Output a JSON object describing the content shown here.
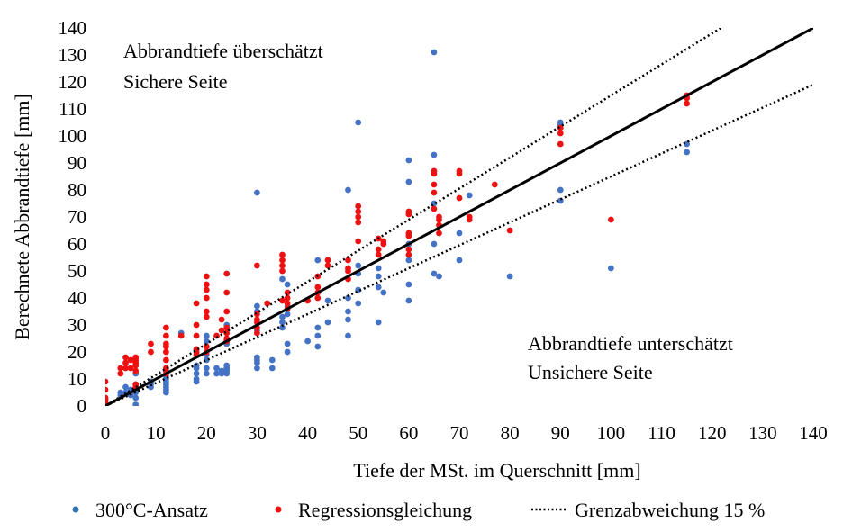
{
  "chart_data": {
    "type": "scatter",
    "xlabel": "Tiefe der MSt. im Querschnitt [mm]",
    "ylabel": "Berechnete Abbrandtiefe [mm]",
    "xlim": [
      0,
      140
    ],
    "ylim": [
      0,
      140
    ],
    "xticks": [
      "0",
      "10",
      "20",
      "30",
      "40",
      "50",
      "60",
      "70",
      "80",
      "90",
      "100",
      "110",
      "120",
      "130",
      "140"
    ],
    "yticks": [
      "0",
      "10",
      "20",
      "30",
      "40",
      "50",
      "60",
      "70",
      "80",
      "90",
      "100",
      "110",
      "120",
      "130",
      "140"
    ],
    "grid": false,
    "legend_position": "bottom",
    "annotations": {
      "top_left_line1": "Abbrandtiefe überschätzt",
      "top_left_line2": "Sichere Seite",
      "bottom_right_line1": "Abbrandtiefe unterschätzt",
      "bottom_right_line2": "Unsichere Seite"
    },
    "reference_lines": [
      {
        "kind": "identity",
        "slope": 1.0,
        "style": "solid",
        "color": "#000000"
      },
      {
        "kind": "upper_limit",
        "slope": 1.15,
        "style": "dotted",
        "color": "#000000"
      },
      {
        "kind": "lower_limit",
        "slope": 0.85,
        "style": "dotted",
        "color": "#000000"
      }
    ],
    "series": [
      {
        "name": "300°C-Ansatz",
        "color": "#4472c4",
        "legend_color": "#2e75b6",
        "points": [
          [
            0,
            1
          ],
          [
            0,
            2
          ],
          [
            0,
            3
          ],
          [
            0,
            2.5
          ],
          [
            3,
            4
          ],
          [
            3,
            5
          ],
          [
            4,
            5
          ],
          [
            4,
            7
          ],
          [
            5,
            4
          ],
          [
            5,
            6
          ],
          [
            6,
            0.5
          ],
          [
            6,
            3
          ],
          [
            6,
            5
          ],
          [
            6,
            6
          ],
          [
            6,
            8
          ],
          [
            6,
            12
          ],
          [
            9,
            7
          ],
          [
            9,
            8
          ],
          [
            9,
            9
          ],
          [
            12,
            5
          ],
          [
            12,
            6
          ],
          [
            12,
            7
          ],
          [
            12,
            8
          ],
          [
            12,
            9
          ],
          [
            12,
            10
          ],
          [
            12,
            11
          ],
          [
            12,
            13
          ],
          [
            15,
            27
          ],
          [
            18,
            9
          ],
          [
            18,
            10
          ],
          [
            18,
            12
          ],
          [
            18,
            14
          ],
          [
            18,
            15
          ],
          [
            18,
            21
          ],
          [
            20,
            12
          ],
          [
            20,
            14
          ],
          [
            20,
            17
          ],
          [
            20,
            19
          ],
          [
            20,
            22
          ],
          [
            20,
            24
          ],
          [
            20,
            26
          ],
          [
            22,
            12
          ],
          [
            22,
            14
          ],
          [
            23,
            12
          ],
          [
            23,
            13
          ],
          [
            24,
            12
          ],
          [
            24,
            13
          ],
          [
            24,
            14
          ],
          [
            24,
            15
          ],
          [
            24,
            23
          ],
          [
            24,
            24
          ],
          [
            24,
            30
          ],
          [
            30,
            14
          ],
          [
            30,
            16
          ],
          [
            30,
            17
          ],
          [
            30,
            18
          ],
          [
            30,
            28
          ],
          [
            30,
            35
          ],
          [
            30,
            37
          ],
          [
            30,
            79
          ],
          [
            33,
            14
          ],
          [
            33,
            17
          ],
          [
            35,
            29
          ],
          [
            35,
            31
          ],
          [
            35,
            33
          ],
          [
            35,
            47
          ],
          [
            36,
            20
          ],
          [
            36,
            23
          ],
          [
            36,
            34
          ],
          [
            36,
            37
          ],
          [
            36,
            45
          ],
          [
            40,
            24
          ],
          [
            42,
            22
          ],
          [
            42,
            26
          ],
          [
            42,
            29
          ],
          [
            42,
            54
          ],
          [
            44,
            31
          ],
          [
            44,
            39
          ],
          [
            48,
            26
          ],
          [
            48,
            32
          ],
          [
            48,
            35
          ],
          [
            48,
            40
          ],
          [
            48,
            80
          ],
          [
            50,
            38
          ],
          [
            50,
            43
          ],
          [
            50,
            49
          ],
          [
            50,
            52
          ],
          [
            50,
            105
          ],
          [
            54,
            31
          ],
          [
            54,
            44
          ],
          [
            54,
            48
          ],
          [
            54,
            51
          ],
          [
            55,
            42
          ],
          [
            60,
            39
          ],
          [
            60,
            45
          ],
          [
            60,
            54
          ],
          [
            60,
            60
          ],
          [
            60,
            83
          ],
          [
            60,
            91
          ],
          [
            65,
            49
          ],
          [
            65,
            60
          ],
          [
            65,
            75
          ],
          [
            65,
            87
          ],
          [
            65,
            93
          ],
          [
            65,
            131
          ],
          [
            66,
            48
          ],
          [
            70,
            54
          ],
          [
            70,
            64
          ],
          [
            72,
            78
          ],
          [
            80,
            48
          ],
          [
            90,
            76
          ],
          [
            90,
            80
          ],
          [
            90,
            104
          ],
          [
            90,
            105
          ],
          [
            100,
            51
          ],
          [
            115,
            94
          ],
          [
            115,
            97
          ]
        ]
      },
      {
        "name": "Regressionsgleichung",
        "color": "#ee1111",
        "points": [
          [
            0,
            1
          ],
          [
            0,
            2
          ],
          [
            0,
            3
          ],
          [
            0,
            6
          ],
          [
            0,
            9
          ],
          [
            3,
            12
          ],
          [
            3,
            14
          ],
          [
            4,
            14
          ],
          [
            4,
            16
          ],
          [
            4,
            18
          ],
          [
            5,
            14
          ],
          [
            5,
            17
          ],
          [
            6,
            7
          ],
          [
            6,
            8
          ],
          [
            6,
            13
          ],
          [
            6,
            15
          ],
          [
            6,
            16
          ],
          [
            6,
            17
          ],
          [
            6,
            18
          ],
          [
            9,
            20
          ],
          [
            9,
            23
          ],
          [
            12,
            12
          ],
          [
            12,
            14
          ],
          [
            12,
            17
          ],
          [
            12,
            20
          ],
          [
            12,
            22
          ],
          [
            12,
            23
          ],
          [
            12,
            26
          ],
          [
            12,
            29
          ],
          [
            15,
            26
          ],
          [
            18,
            19
          ],
          [
            18,
            20
          ],
          [
            18,
            21
          ],
          [
            18,
            26
          ],
          [
            18,
            30
          ],
          [
            18,
            38
          ],
          [
            20,
            20
          ],
          [
            20,
            22
          ],
          [
            20,
            33
          ],
          [
            20,
            35
          ],
          [
            20,
            40
          ],
          [
            20,
            43
          ],
          [
            20,
            45
          ],
          [
            20,
            48
          ],
          [
            22,
            26
          ],
          [
            23,
            28
          ],
          [
            23,
            32
          ],
          [
            24,
            24
          ],
          [
            24,
            25
          ],
          [
            24,
            27
          ],
          [
            24,
            29
          ],
          [
            24,
            35
          ],
          [
            24,
            42
          ],
          [
            24,
            49
          ],
          [
            30,
            27
          ],
          [
            30,
            29
          ],
          [
            30,
            31
          ],
          [
            30,
            32
          ],
          [
            30,
            34
          ],
          [
            30,
            52
          ],
          [
            32,
            38
          ],
          [
            35,
            39
          ],
          [
            35,
            50
          ],
          [
            35,
            52
          ],
          [
            35,
            54
          ],
          [
            35,
            56
          ],
          [
            36,
            36
          ],
          [
            36,
            38
          ],
          [
            36,
            40
          ],
          [
            36,
            42
          ],
          [
            40,
            39
          ],
          [
            42,
            40
          ],
          [
            42,
            42
          ],
          [
            42,
            44
          ],
          [
            42,
            48
          ],
          [
            44,
            52
          ],
          [
            44,
            54
          ],
          [
            48,
            47
          ],
          [
            48,
            50
          ],
          [
            48,
            51
          ],
          [
            48,
            54
          ],
          [
            50,
            61
          ],
          [
            50,
            68
          ],
          [
            50,
            70
          ],
          [
            50,
            72
          ],
          [
            50,
            74
          ],
          [
            54,
            56
          ],
          [
            54,
            58
          ],
          [
            54,
            62
          ],
          [
            55,
            60
          ],
          [
            55,
            61
          ],
          [
            60,
            56
          ],
          [
            60,
            58
          ],
          [
            60,
            63
          ],
          [
            60,
            64
          ],
          [
            60,
            71
          ],
          [
            60,
            72
          ],
          [
            65,
            73
          ],
          [
            65,
            79
          ],
          [
            65,
            82
          ],
          [
            65,
            86
          ],
          [
            65,
            87
          ],
          [
            66,
            64
          ],
          [
            66,
            67
          ],
          [
            66,
            69
          ],
          [
            66,
            70
          ],
          [
            70,
            77
          ],
          [
            70,
            86
          ],
          [
            70,
            87
          ],
          [
            72,
            69
          ],
          [
            72,
            70
          ],
          [
            77,
            82
          ],
          [
            80,
            65
          ],
          [
            90,
            97
          ],
          [
            90,
            101
          ],
          [
            90,
            103
          ],
          [
            100,
            69
          ],
          [
            115,
            112
          ],
          [
            115,
            114
          ],
          [
            115,
            115
          ]
        ]
      }
    ],
    "legend": [
      {
        "label": "300°C-Ansatz",
        "marker": "dot"
      },
      {
        "label": "Regressionsgleichung",
        "marker": "dot"
      },
      {
        "label": "Grenzabweichung 15 %",
        "marker": "dotted-line"
      }
    ]
  }
}
